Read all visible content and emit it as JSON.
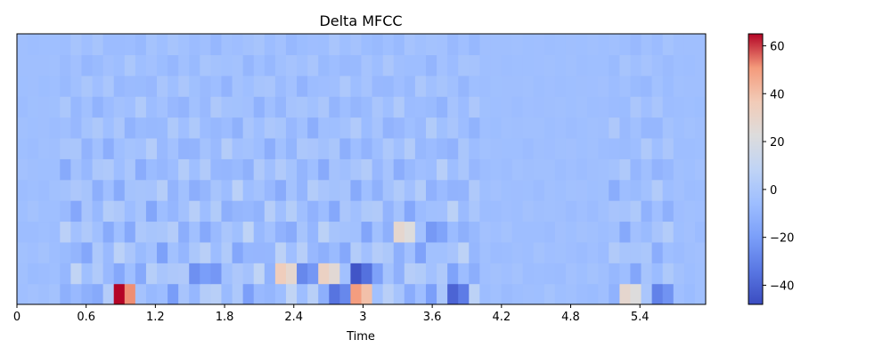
{
  "chart_data": {
    "type": "heatmap",
    "title": "Delta MFCC",
    "xlabel": "Time",
    "ylabel": "",
    "xlim": [
      0,
      5.97
    ],
    "x_ticks": [
      "0",
      "0.6",
      "1.2",
      "1.8",
      "2.4",
      "3",
      "3.6",
      "4.2",
      "4.8",
      "5.4"
    ],
    "x_tick_values": [
      0,
      0.6,
      1.2,
      1.8,
      2.4,
      3.0,
      3.6,
      4.2,
      4.8,
      5.4
    ],
    "y_ticks_visible": false,
    "n_coefficients": 13,
    "n_frames": 64,
    "colormap": "coolwarm",
    "colorbar": {
      "vmin": -48,
      "vmax": 65,
      "ticks": [
        "60",
        "40",
        "20",
        "0",
        "−20",
        "−40"
      ],
      "tick_values": [
        60,
        40,
        20,
        0,
        -20,
        -40
      ]
    },
    "notable_values": [
      {
        "time": 0.92,
        "coefficient": 0,
        "value": 65
      },
      {
        "time": 2.98,
        "coefficient": 1,
        "value": -45
      },
      {
        "time": 2.94,
        "coefficient": 0,
        "value": 50
      },
      {
        "time": 2.71,
        "coefficient": 0,
        "value": -35
      },
      {
        "time": 3.8,
        "coefficient": 0,
        "value": -40
      },
      {
        "time": 5.55,
        "coefficient": 0,
        "value": -30
      },
      {
        "time": 5.25,
        "coefficient": 0,
        "value": 28
      },
      {
        "time": 2.3,
        "coefficient": 1,
        "value": 35
      },
      {
        "time": 2.66,
        "coefficient": 1,
        "value": 32
      },
      {
        "time": 3.28,
        "coefficient": 3,
        "value": 28
      },
      {
        "time": 1.65,
        "coefficient": 1,
        "value": -28
      },
      {
        "time": 1.52,
        "coefficient": 1,
        "value": -25
      },
      {
        "time": 2.5,
        "coefficient": 1,
        "value": -28
      },
      {
        "time": 3.58,
        "coefficient": 3,
        "value": -22
      }
    ]
  }
}
